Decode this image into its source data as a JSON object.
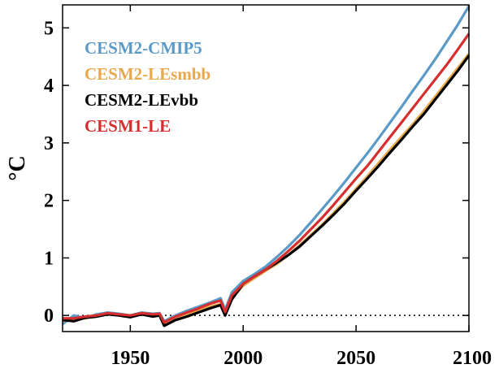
{
  "chart_data": {
    "type": "line",
    "title": "",
    "xlabel": "",
    "ylabel": "°C",
    "xlim": [
      1920,
      2100
    ],
    "ylim": [
      -0.28,
      5.4
    ],
    "xticks": [
      1950,
      2000,
      2050,
      2100
    ],
    "yticks": [
      0,
      1,
      2,
      3,
      4,
      5
    ],
    "x_tick_labels": [
      "1950",
      "2000",
      "2050",
      "2100"
    ],
    "y_tick_labels": [
      "0",
      "1",
      "2",
      "3",
      "4",
      "5"
    ],
    "grid": false,
    "zero_reference_line": "dotted",
    "legend_position": "top-left",
    "series": [
      {
        "name": "CESM2-CMIP5",
        "color": "#5b9ac7",
        "x": [
          1920,
          1925,
          1930,
          1935,
          1940,
          1945,
          1950,
          1955,
          1960,
          1963,
          1965,
          1970,
          1975,
          1980,
          1985,
          1990,
          1992,
          1995,
          2000,
          2005,
          2010,
          2015,
          2020,
          2025,
          2030,
          2035,
          2040,
          2045,
          2050,
          2055,
          2060,
          2065,
          2070,
          2075,
          2080,
          2085,
          2090,
          2095,
          2100
        ],
        "values": [
          -0.15,
          0.0,
          -0.05,
          0.02,
          0.05,
          0.03,
          0.0,
          0.05,
          0.03,
          0.04,
          -0.1,
          0.0,
          0.08,
          0.15,
          0.22,
          0.3,
          0.1,
          0.4,
          0.6,
          0.72,
          0.85,
          1.02,
          1.2,
          1.4,
          1.62,
          1.85,
          2.08,
          2.32,
          2.57,
          2.82,
          3.08,
          3.35,
          3.62,
          3.9,
          4.17,
          4.45,
          4.75,
          5.05,
          5.38
        ]
      },
      {
        "name": "CESM2-LEsmbb",
        "color": "#e8a84c",
        "x": [
          1920,
          1925,
          1930,
          1935,
          1940,
          1945,
          1950,
          1955,
          1960,
          1963,
          1965,
          1970,
          1975,
          1980,
          1985,
          1990,
          1992,
          1995,
          2000,
          2005,
          2010,
          2015,
          2020,
          2025,
          2030,
          2035,
          2040,
          2045,
          2050,
          2055,
          2060,
          2065,
          2070,
          2075,
          2080,
          2085,
          2090,
          2095,
          2100
        ],
        "values": [
          -0.1,
          -0.05,
          -0.05,
          0.0,
          0.03,
          0.02,
          -0.02,
          0.03,
          0.0,
          0.02,
          -0.15,
          -0.05,
          0.0,
          0.08,
          0.15,
          0.2,
          0.02,
          0.3,
          0.52,
          0.65,
          0.78,
          0.9,
          1.05,
          1.22,
          1.4,
          1.58,
          1.78,
          1.98,
          2.2,
          2.42,
          2.65,
          2.88,
          3.1,
          3.32,
          3.55,
          3.8,
          4.05,
          4.3,
          4.55
        ]
      },
      {
        "name": "CESM2-LEvbb",
        "color": "#000000",
        "x": [
          1920,
          1925,
          1930,
          1935,
          1940,
          1945,
          1950,
          1955,
          1960,
          1963,
          1965,
          1970,
          1975,
          1980,
          1985,
          1990,
          1992,
          1995,
          2000,
          2005,
          2010,
          2015,
          2020,
          2025,
          2030,
          2035,
          2040,
          2045,
          2050,
          2055,
          2060,
          2065,
          2070,
          2075,
          2080,
          2085,
          2090,
          2095,
          2100
        ],
        "values": [
          -0.08,
          -0.1,
          -0.04,
          -0.02,
          0.02,
          0.0,
          -0.03,
          0.02,
          -0.02,
          0.0,
          -0.18,
          -0.08,
          -0.02,
          0.05,
          0.12,
          0.18,
          0.0,
          0.28,
          0.55,
          0.68,
          0.8,
          0.92,
          1.05,
          1.2,
          1.38,
          1.56,
          1.75,
          1.95,
          2.17,
          2.38,
          2.6,
          2.83,
          3.05,
          3.28,
          3.5,
          3.75,
          4.0,
          4.25,
          4.52
        ]
      },
      {
        "name": "CESM1-LE",
        "color": "#d62e2e",
        "x": [
          1920,
          1925,
          1930,
          1935,
          1940,
          1945,
          1950,
          1955,
          1960,
          1963,
          1965,
          1970,
          1975,
          1980,
          1985,
          1990,
          1992,
          1995,
          2000,
          2005,
          2010,
          2015,
          2020,
          2025,
          2030,
          2035,
          2040,
          2045,
          2050,
          2055,
          2060,
          2065,
          2070,
          2075,
          2080,
          2085,
          2090,
          2095,
          2100
        ],
        "values": [
          -0.05,
          -0.05,
          -0.02,
          0.0,
          0.04,
          0.02,
          0.0,
          0.04,
          0.02,
          0.03,
          -0.12,
          -0.02,
          0.05,
          0.12,
          0.2,
          0.26,
          0.06,
          0.35,
          0.55,
          0.68,
          0.8,
          0.95,
          1.12,
          1.3,
          1.5,
          1.7,
          1.92,
          2.15,
          2.38,
          2.6,
          2.85,
          3.1,
          3.35,
          3.6,
          3.85,
          4.1,
          4.35,
          4.62,
          4.9
        ]
      }
    ]
  }
}
